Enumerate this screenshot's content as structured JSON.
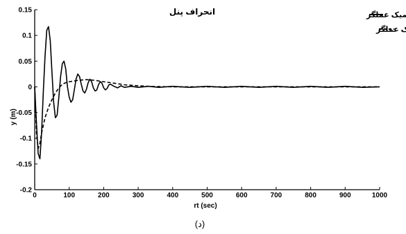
{
  "chart_data": {
    "type": "line",
    "title": "انحراف پنل",
    "xlabel": "rt (sec)",
    "ylabel": "y (m)",
    "xlim": [
      0,
      1000
    ],
    "ylim": [
      -0.2,
      0.15
    ],
    "xticks": [
      "0",
      "100",
      "200",
      "300",
      "400",
      "500",
      "600",
      "700",
      "800",
      "900",
      "1000"
    ],
    "yticks": [
      "0.15",
      "0.1",
      "0.05",
      "0",
      "-0.05",
      "-0.1",
      "-0.15",
      "-0.2"
    ],
    "grid": false,
    "legend_position": "top-right",
    "series": [
      {
        "name": "با دینامیک عملگر",
        "style": "solid",
        "x": [
          0,
          5,
          10,
          15,
          20,
          25,
          30,
          35,
          40,
          45,
          50,
          55,
          60,
          65,
          70,
          75,
          80,
          85,
          90,
          95,
          100,
          105,
          110,
          115,
          120,
          125,
          130,
          135,
          140,
          145,
          150,
          155,
          160,
          165,
          170,
          175,
          180,
          185,
          190,
          195,
          200,
          205,
          210,
          215,
          220,
          230,
          240,
          250,
          260,
          280,
          300,
          330,
          360,
          400,
          450,
          500,
          550,
          600,
          650,
          700,
          750,
          800,
          850,
          900,
          950,
          1000
        ],
        "y": [
          0,
          -0.07,
          -0.13,
          -0.14,
          -0.09,
          -0.01,
          0.06,
          0.11,
          0.117,
          0.09,
          0.03,
          -0.03,
          -0.06,
          -0.055,
          -0.02,
          0.02,
          0.045,
          0.05,
          0.035,
          0.0,
          -0.02,
          -0.03,
          -0.025,
          -0.005,
          0.015,
          0.025,
          0.02,
          0.005,
          -0.008,
          -0.012,
          -0.005,
          0.008,
          0.015,
          0.01,
          -0.002,
          -0.008,
          -0.006,
          0.004,
          0.01,
          0.007,
          -0.002,
          -0.006,
          -0.003,
          0.004,
          0.005,
          0.001,
          -0.002,
          0.002,
          -0.001,
          0.001,
          -0.001,
          0.001,
          -0.001,
          0.001,
          -0.001,
          0.001,
          -0.001,
          0.001,
          -0.001,
          0.001,
          -0.001,
          0.001,
          -0.001,
          0.001,
          -0.001,
          0.0
        ]
      },
      {
        "name": "بدون دینامیک عملگر",
        "style": "dashed",
        "x": [
          0,
          5,
          10,
          15,
          20,
          25,
          30,
          40,
          50,
          60,
          70,
          80,
          90,
          100,
          110,
          120,
          130,
          140,
          150,
          160,
          170,
          180,
          190,
          200,
          210,
          220,
          230,
          240,
          250,
          260,
          280,
          300,
          330,
          360,
          400,
          450,
          500,
          600,
          700,
          800,
          900,
          1000
        ],
        "y": [
          0,
          -0.09,
          -0.12,
          -0.11,
          -0.09,
          -0.075,
          -0.06,
          -0.04,
          -0.025,
          -0.012,
          -0.002,
          0.005,
          0.008,
          0.01,
          0.011,
          0.012,
          0.013,
          0.0135,
          0.014,
          0.0135,
          0.013,
          0.012,
          0.011,
          0.01,
          0.009,
          0.008,
          0.007,
          0.006,
          0.005,
          0.004,
          0.003,
          0.002,
          0.001,
          0.0005,
          0.0,
          0.0,
          0.0,
          0.0,
          0.0,
          0.0,
          0.0,
          0.0
        ]
      }
    ]
  },
  "caption": "(د)"
}
